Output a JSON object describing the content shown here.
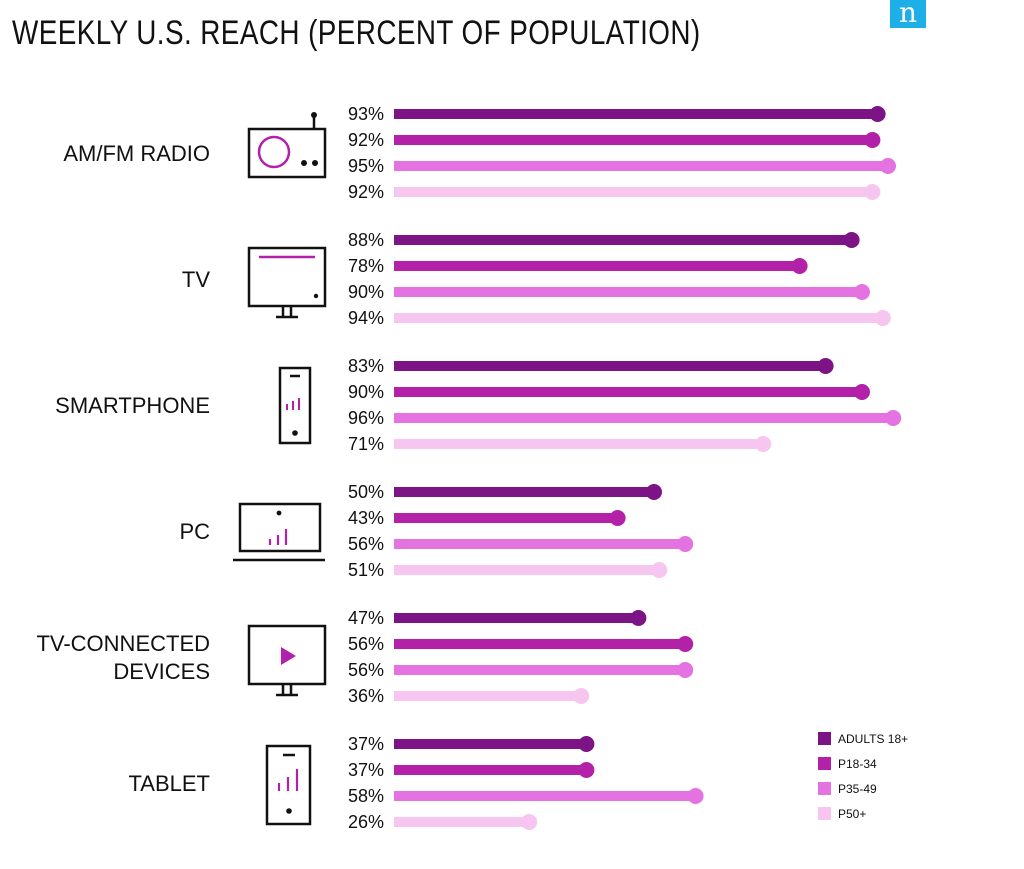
{
  "chart_data": {
    "type": "bar",
    "orientation": "horizontal",
    "style": "lollipop",
    "title": "WEEKLY U.S. REACH (PERCENT OF POPULATION)",
    "categories": [
      {
        "label": "AM/FM RADIO",
        "icon": "radio-icon"
      },
      {
        "label": "TV",
        "icon": "tv-icon"
      },
      {
        "label": "SMARTPHONE",
        "icon": "smartphone-icon"
      },
      {
        "label": "PC",
        "icon": "laptop-icon"
      },
      {
        "label": "TV-CONNECTED DEVICES",
        "icon": "tv-play-icon"
      },
      {
        "label": "TABLET",
        "icon": "tablet-icon"
      }
    ],
    "series": [
      {
        "name": "ADULTS 18+",
        "color": "#7d1486",
        "values": [
          93,
          88,
          83,
          50,
          47,
          37
        ]
      },
      {
        "name": "P18-34",
        "color": "#b221a8",
        "values": [
          92,
          78,
          90,
          43,
          56,
          37
        ]
      },
      {
        "name": "P35-49",
        "color": "#e472e0",
        "values": [
          95,
          90,
          96,
          56,
          56,
          58
        ]
      },
      {
        "name": "P50+",
        "color": "#f6c5f0",
        "values": [
          92,
          94,
          71,
          51,
          36,
          26
        ]
      }
    ],
    "value_suffix": "%",
    "xlim": [
      0,
      100
    ],
    "legend_position": "bottom-right"
  },
  "brand": {
    "logo_letter": "n",
    "logo_color": "#1eaee8"
  }
}
